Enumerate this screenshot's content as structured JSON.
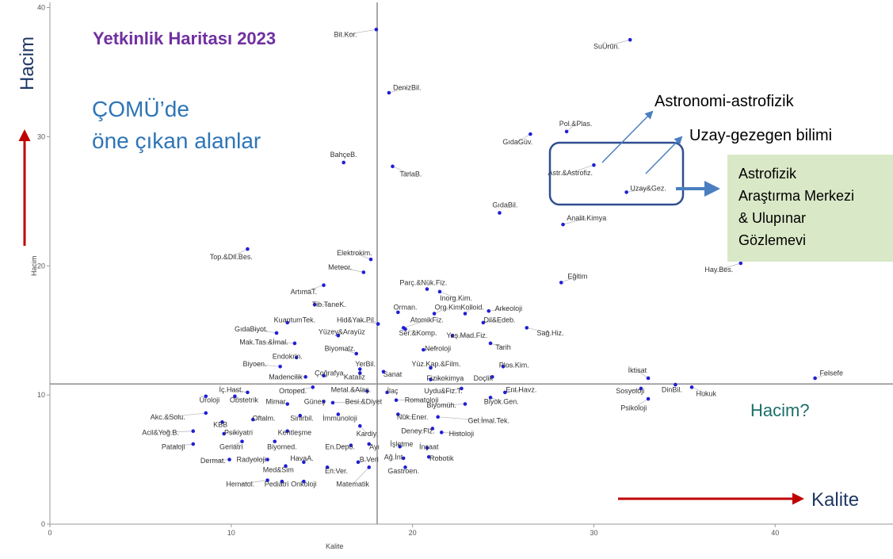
{
  "heading": "Yetkinlik Haritası 2023",
  "subheading": [
    "ÇOMÜ’de",
    "öne çıkan alanlar"
  ],
  "volume_label_big": "Hacim",
  "quality_label_big": "Kalite",
  "volume_question": "Hacim?",
  "callouts": {
    "astro": "Astronomi-astrofizik",
    "planet": "Uzay-gezegen bilimi",
    "center": [
      "Astrofizik",
      "Araştırma Merkezi",
      "& Ulupınar",
      "Gözlemevi"
    ]
  },
  "colors": {
    "points": "#1f1fd6",
    "heading": "#7030a0",
    "subheading": "#2e75b6",
    "highlight_box": "#2f4f8f",
    "arrow_red": "#c00000",
    "green_box": "#d9e8c7"
  },
  "chart_data": {
    "type": "scatter",
    "xlabel": "Kalite",
    "ylabel": "Hacim",
    "xlim": [
      0,
      46.5
    ],
    "ylim": [
      0,
      40.4
    ],
    "xticks": [
      0,
      10,
      20,
      30,
      40
    ],
    "yticks": [
      0,
      10,
      20,
      30,
      40
    ],
    "reference_lines": {
      "x": 18.05,
      "y": 10.85
    },
    "points": [
      {
        "label": "Bit.Kor.",
        "x": 18.0,
        "y": 38.3,
        "lx": 16.3,
        "ly": 37.9
      },
      {
        "label": "SuÜrün.",
        "x": 32.0,
        "y": 37.5,
        "lx": 30.7,
        "ly": 37.0
      },
      {
        "label": "DenizBil.",
        "x": 18.7,
        "y": 33.4,
        "lx": 19.7,
        "ly": 33.8
      },
      {
        "label": "Pol.&Plas.",
        "x": 28.5,
        "y": 30.4,
        "lx": 29.0,
        "ly": 31.0
      },
      {
        "label": "GıdaGüv.",
        "x": 26.5,
        "y": 30.2,
        "lx": 25.8,
        "ly": 29.6
      },
      {
        "label": "BahçeB.",
        "x": 16.2,
        "y": 28.0,
        "lx": 16.2,
        "ly": 28.6
      },
      {
        "label": "TarlaB.",
        "x": 18.9,
        "y": 27.7,
        "lx": 19.9,
        "ly": 27.1
      },
      {
        "label": "Astr.&Astrofiz.",
        "x": 30.0,
        "y": 27.8,
        "lx": 28.7,
        "ly": 27.2
      },
      {
        "label": "Uzay&Gez.",
        "x": 31.8,
        "y": 25.7,
        "lx": 33.0,
        "ly": 26.0
      },
      {
        "label": "GıdaBil.",
        "x": 24.8,
        "y": 24.1,
        "lx": 25.1,
        "ly": 24.7
      },
      {
        "label": "Analit.Kimya",
        "x": 28.3,
        "y": 23.2,
        "lx": 29.6,
        "ly": 23.7
      },
      {
        "label": "Top.&Dil.Bes.",
        "x": 10.9,
        "y": 21.3,
        "lx": 10.0,
        "ly": 20.7
      },
      {
        "label": "Elektrokim.",
        "x": 17.7,
        "y": 20.5,
        "lx": 16.8,
        "ly": 21.0
      },
      {
        "label": "Meteor.",
        "x": 17.3,
        "y": 19.5,
        "lx": 16.0,
        "ly": 19.9
      },
      {
        "label": "Eğitim",
        "x": 28.2,
        "y": 18.7,
        "lx": 29.1,
        "ly": 19.2
      },
      {
        "label": "Hay.Bes.",
        "x": 38.1,
        "y": 20.2,
        "lx": 36.9,
        "ly": 19.7
      },
      {
        "label": "ArtımaT.",
        "x": 15.1,
        "y": 18.5,
        "lx": 14.0,
        "ly": 18.0
      },
      {
        "label": "Parç.&Nük.Fiz.",
        "x": 20.8,
        "y": 18.2,
        "lx": 20.6,
        "ly": 18.7
      },
      {
        "label": "Inorg.Kim.",
        "x": 21.5,
        "y": 18.0,
        "lx": 22.4,
        "ly": 17.5
      },
      {
        "label": "Tib.TaneK.",
        "x": 14.6,
        "y": 17.0,
        "lx": 15.4,
        "ly": 17.0
      },
      {
        "label": "Orman.",
        "x": 19.2,
        "y": 16.4,
        "lx": 19.6,
        "ly": 16.8
      },
      {
        "label": "Org.Kim.",
        "x": 21.2,
        "y": 16.3,
        "lx": 22.0,
        "ly": 16.8
      },
      {
        "label": "Kolloid.",
        "x": 22.9,
        "y": 16.3,
        "lx": 23.3,
        "ly": 16.8
      },
      {
        "label": "Arkeoloji",
        "x": 24.2,
        "y": 16.5,
        "lx": 25.3,
        "ly": 16.7
      },
      {
        "label": "KuantumTek.",
        "x": 13.1,
        "y": 15.6,
        "lx": 13.5,
        "ly": 15.8
      },
      {
        "label": "Hid&Yak.Pil.",
        "x": 18.1,
        "y": 15.5,
        "lx": 16.9,
        "ly": 15.8
      },
      {
        "label": "AtomikFiz.",
        "x": 19.5,
        "y": 15.2,
        "lx": 20.8,
        "ly": 15.8
      },
      {
        "label": "Dil&Edeb.",
        "x": 23.9,
        "y": 15.6,
        "lx": 24.8,
        "ly": 15.8
      },
      {
        "label": "GıdaBiyot.",
        "x": 12.5,
        "y": 14.8,
        "lx": 11.1,
        "ly": 15.1
      },
      {
        "label": "Yüzey&Arayüz",
        "x": 15.9,
        "y": 14.6,
        "lx": 16.1,
        "ly": 14.9
      },
      {
        "label": "Ser.&Komp.",
        "x": 19.6,
        "y": 15.1,
        "lx": 20.3,
        "ly": 14.8
      },
      {
        "label": "Yaş.Mad.Fiz.",
        "x": 22.2,
        "y": 14.6,
        "lx": 23.0,
        "ly": 14.6
      },
      {
        "label": "Sağ.Hiz.",
        "x": 26.3,
        "y": 15.2,
        "lx": 27.6,
        "ly": 14.8
      },
      {
        "label": "Mak.Tas.&İmal.",
        "x": 13.5,
        "y": 14.0,
        "lx": 11.8,
        "ly": 14.1
      },
      {
        "label": "Biyomalz.",
        "x": 16.9,
        "y": 13.2,
        "lx": 16.0,
        "ly": 13.6
      },
      {
        "label": "Nefroloji",
        "x": 20.6,
        "y": 13.5,
        "lx": 21.4,
        "ly": 13.6
      },
      {
        "label": "Tarih",
        "x": 24.3,
        "y": 14.0,
        "lx": 25.0,
        "ly": 13.7
      },
      {
        "label": "Endokrin.",
        "x": 13.6,
        "y": 12.9,
        "lx": 13.1,
        "ly": 13.0
      },
      {
        "label": "Biyoen.",
        "x": 12.7,
        "y": 12.2,
        "lx": 11.3,
        "ly": 12.4
      },
      {
        "label": "YerBil.",
        "x": 17.1,
        "y": 12.0,
        "lx": 17.4,
        "ly": 12.4
      },
      {
        "label": "Yüz.Kap.&Film.",
        "x": 21.0,
        "y": 12.1,
        "lx": 21.3,
        "ly": 12.4
      },
      {
        "label": "Plos.Kim.",
        "x": 25.0,
        "y": 12.2,
        "lx": 25.6,
        "ly": 12.3
      },
      {
        "label": "Çoğrafya",
        "x": 15.1,
        "y": 11.5,
        "lx": 15.4,
        "ly": 11.7
      },
      {
        "label": "Madencilik",
        "x": 14.1,
        "y": 11.4,
        "lx": 13.0,
        "ly": 11.4
      },
      {
        "label": "Kataliz",
        "x": 17.1,
        "y": 11.7,
        "lx": 16.8,
        "ly": 11.4
      },
      {
        "label": "Sanat",
        "x": 18.4,
        "y": 11.8,
        "lx": 18.9,
        "ly": 11.6
      },
      {
        "label": "Fizikokimya",
        "x": 21.0,
        "y": 11.2,
        "lx": 21.8,
        "ly": 11.3
      },
      {
        "label": "Doçlik",
        "x": 24.4,
        "y": 11.4,
        "lx": 23.9,
        "ly": 11.3
      },
      {
        "label": "İktisat",
        "x": 33.0,
        "y": 11.3,
        "lx": 32.4,
        "ly": 11.9
      },
      {
        "label": "Felsefe",
        "x": 42.2,
        "y": 11.3,
        "lx": 43.1,
        "ly": 11.7
      },
      {
        "label": "İç.Hast.",
        "x": 10.9,
        "y": 10.2,
        "lx": 10.0,
        "ly": 10.4
      },
      {
        "label": "Ortoped.",
        "x": 14.5,
        "y": 10.6,
        "lx": 13.4,
        "ly": 10.3
      },
      {
        "label": "Metal.&Alaş.",
        "x": 17.5,
        "y": 10.3,
        "lx": 16.6,
        "ly": 10.4
      },
      {
        "label": "İlaç",
        "x": 18.6,
        "y": 10.2,
        "lx": 18.9,
        "ly": 10.3
      },
      {
        "label": "Uydu&Fiz.T.",
        "x": 22.7,
        "y": 10.5,
        "lx": 21.7,
        "ly": 10.3
      },
      {
        "label": "Ent.Havz.",
        "x": 25.1,
        "y": 10.2,
        "lx": 26.0,
        "ly": 10.4
      },
      {
        "label": "Sosyoloji",
        "x": 32.6,
        "y": 10.5,
        "lx": 32.0,
        "ly": 10.3
      },
      {
        "label": "DinBil.",
        "x": 34.5,
        "y": 10.8,
        "lx": 34.3,
        "ly": 10.4
      },
      {
        "label": "Hukuk",
        "x": 35.4,
        "y": 10.6,
        "lx": 36.2,
        "ly": 10.1
      },
      {
        "label": "Üroloji",
        "x": 8.6,
        "y": 9.9,
        "lx": 8.8,
        "ly": 9.6
      },
      {
        "label": "Obstetrik",
        "x": 10.2,
        "y": 9.9,
        "lx": 10.7,
        "ly": 9.6
      },
      {
        "label": "Mimar.",
        "x": 13.1,
        "y": 9.3,
        "lx": 12.5,
        "ly": 9.5
      },
      {
        "label": "Güneş",
        "x": 15.1,
        "y": 9.5,
        "lx": 14.6,
        "ly": 9.5
      },
      {
        "label": "Besi.&Diyet",
        "x": 15.6,
        "y": 9.4,
        "lx": 17.3,
        "ly": 9.5
      },
      {
        "label": "Romatoloji",
        "x": 19.1,
        "y": 9.6,
        "lx": 20.5,
        "ly": 9.6
      },
      {
        "label": "Biyomüh.",
        "x": 22.9,
        "y": 9.3,
        "lx": 21.6,
        "ly": 9.2
      },
      {
        "label": "Biyok.Gen.",
        "x": 24.3,
        "y": 9.8,
        "lx": 24.9,
        "ly": 9.5
      },
      {
        "label": "Psikoloji",
        "x": 33.0,
        "y": 9.7,
        "lx": 32.2,
        "ly": 9.0
      },
      {
        "label": "Akc.&Solu.",
        "x": 8.6,
        "y": 8.6,
        "lx": 6.5,
        "ly": 8.3
      },
      {
        "label": "KBB",
        "x": 9.5,
        "y": 7.9,
        "lx": 9.4,
        "ly": 7.7
      },
      {
        "label": "Oftalm.",
        "x": 11.2,
        "y": 8.1,
        "lx": 11.8,
        "ly": 8.2
      },
      {
        "label": "Sinirbil.",
        "x": 13.8,
        "y": 8.4,
        "lx": 13.9,
        "ly": 8.2
      },
      {
        "label": "İmmunoloji",
        "x": 15.9,
        "y": 8.5,
        "lx": 16.0,
        "ly": 8.2
      },
      {
        "label": "Nük.Ener.",
        "x": 19.2,
        "y": 8.5,
        "lx": 20.0,
        "ly": 8.3
      },
      {
        "label": "Gel.İmal.Tek.",
        "x": 21.4,
        "y": 8.3,
        "lx": 24.2,
        "ly": 8.0
      },
      {
        "label": "Acil&Yoğ.B.",
        "x": 7.9,
        "y": 7.2,
        "lx": 6.1,
        "ly": 7.1
      },
      {
        "label": "Psikiyatri",
        "x": 9.6,
        "y": 7.0,
        "lx": 10.4,
        "ly": 7.1
      },
      {
        "label": "Kentleşme",
        "x": 13.1,
        "y": 7.2,
        "lx": 13.5,
        "ly": 7.1
      },
      {
        "label": "Kardiy.",
        "x": 17.1,
        "y": 7.6,
        "lx": 17.5,
        "ly": 7.0
      },
      {
        "label": "Deney.Fiz.",
        "x": 21.1,
        "y": 7.4,
        "lx": 20.3,
        "ly": 7.2
      },
      {
        "label": "Histoloji",
        "x": 21.6,
        "y": 7.1,
        "lx": 22.7,
        "ly": 7.0
      },
      {
        "label": "Pataloji",
        "x": 7.9,
        "y": 6.2,
        "lx": 6.8,
        "ly": 6.0
      },
      {
        "label": "Geriatri",
        "x": 10.6,
        "y": 6.4,
        "lx": 10.0,
        "ly": 6.0
      },
      {
        "label": "Biyomed.",
        "x": 12.4,
        "y": 6.4,
        "lx": 12.8,
        "ly": 6.0
      },
      {
        "label": "En.Depo.",
        "x": 16.6,
        "y": 6.1,
        "lx": 16.0,
        "ly": 6.0
      },
      {
        "label": "Ayı",
        "x": 17.6,
        "y": 6.2,
        "lx": 17.9,
        "ly": 6.0
      },
      {
        "label": "İşletme",
        "x": 19.3,
        "y": 6.0,
        "lx": 19.4,
        "ly": 6.2
      },
      {
        "label": "İnşaat",
        "x": 20.8,
        "y": 5.9,
        "lx": 20.9,
        "ly": 6.0
      },
      {
        "label": "Dermat.",
        "x": 9.9,
        "y": 5.0,
        "lx": 9.0,
        "ly": 4.9
      },
      {
        "label": "Radyoloji",
        "x": 12.0,
        "y": 5.0,
        "lx": 11.1,
        "ly": 5.0
      },
      {
        "label": "HavaA.",
        "x": 14.0,
        "y": 4.8,
        "lx": 13.9,
        "ly": 5.1
      },
      {
        "label": "B.Veri",
        "x": 17.0,
        "y": 4.8,
        "lx": 17.6,
        "ly": 5.0
      },
      {
        "label": "Ağ.İnt.",
        "x": 19.5,
        "y": 5.1,
        "lx": 19.0,
        "ly": 5.2
      },
      {
        "label": "Robotik",
        "x": 20.9,
        "y": 5.2,
        "lx": 21.6,
        "ly": 5.1
      },
      {
        "label": "Med&Sim",
        "x": 13.0,
        "y": 4.5,
        "lx": 12.6,
        "ly": 4.2
      },
      {
        "label": "Gastroen.",
        "x": 19.6,
        "y": 4.4,
        "lx": 19.5,
        "ly": 4.1
      },
      {
        "label": "Hematol.",
        "x": 12.0,
        "y": 3.4,
        "lx": 10.5,
        "ly": 3.1
      },
      {
        "label": "Pediatri",
        "x": 12.8,
        "y": 3.3,
        "lx": 12.5,
        "ly": 3.1
      },
      {
        "label": "Onkoloji",
        "x": 14.0,
        "y": 3.3,
        "lx": 14.0,
        "ly": 3.1
      },
      {
        "label": "En.Ver.",
        "x": 15.3,
        "y": 4.4,
        "lx": 15.8,
        "ly": 4.1
      },
      {
        "label": "Matematik",
        "x": 17.6,
        "y": 4.4,
        "lx": 16.7,
        "ly": 3.1
      }
    ]
  }
}
